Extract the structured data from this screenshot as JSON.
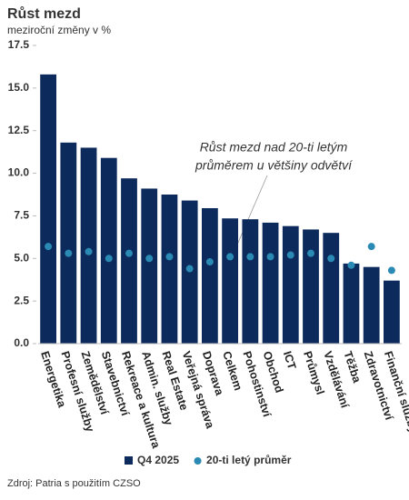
{
  "chart_data": {
    "type": "bar",
    "title": "Růst mezd",
    "subtitle": "meziroční změny v %",
    "categories": [
      "Energetika",
      "Profesní služby",
      "Zemědělství",
      "Stavebnictví",
      "Rekreace a kultura",
      "Admin. služby",
      "Real Estate",
      "Veřejná správa",
      "Doprava",
      "Celkem",
      "Pohostinství",
      "Obchod",
      "ICT",
      "Průmysl",
      "Vzdělávání",
      "Těžba",
      "Zdravotnictví",
      "Finanční služby"
    ],
    "series": [
      {
        "name": "Q4 2025",
        "type": "bar",
        "color": "#0c2a5b",
        "values": [
          15.8,
          11.8,
          11.5,
          10.9,
          9.7,
          9.1,
          8.75,
          8.4,
          7.95,
          7.35,
          7.3,
          7.1,
          6.9,
          6.7,
          6.5,
          4.7,
          4.5,
          3.7
        ]
      },
      {
        "name": "20-ti letý průměr",
        "type": "scatter",
        "color": "#2a8ab4",
        "values": [
          5.7,
          5.3,
          5.4,
          5.0,
          5.3,
          5.0,
          5.1,
          4.4,
          4.8,
          5.1,
          5.1,
          5.1,
          5.2,
          5.3,
          5.0,
          4.6,
          5.7,
          4.3
        ]
      }
    ],
    "ylim": [
      0,
      17.5
    ],
    "yticks": [
      {
        "value": 0,
        "label": "0.0"
      },
      2.5,
      {
        "value": 5,
        "label": "5.0"
      },
      7.5,
      {
        "value": 10,
        "label": "10.0"
      },
      12.5,
      {
        "value": 15,
        "label": "15.0"
      },
      17.5
    ],
    "annotation": [
      "Růst mezd nad 20-ti letým",
      "průměrem u většiny odvětví"
    ],
    "source": "Zdroj: Patria s použitím CZSO",
    "legend": "bottom"
  }
}
